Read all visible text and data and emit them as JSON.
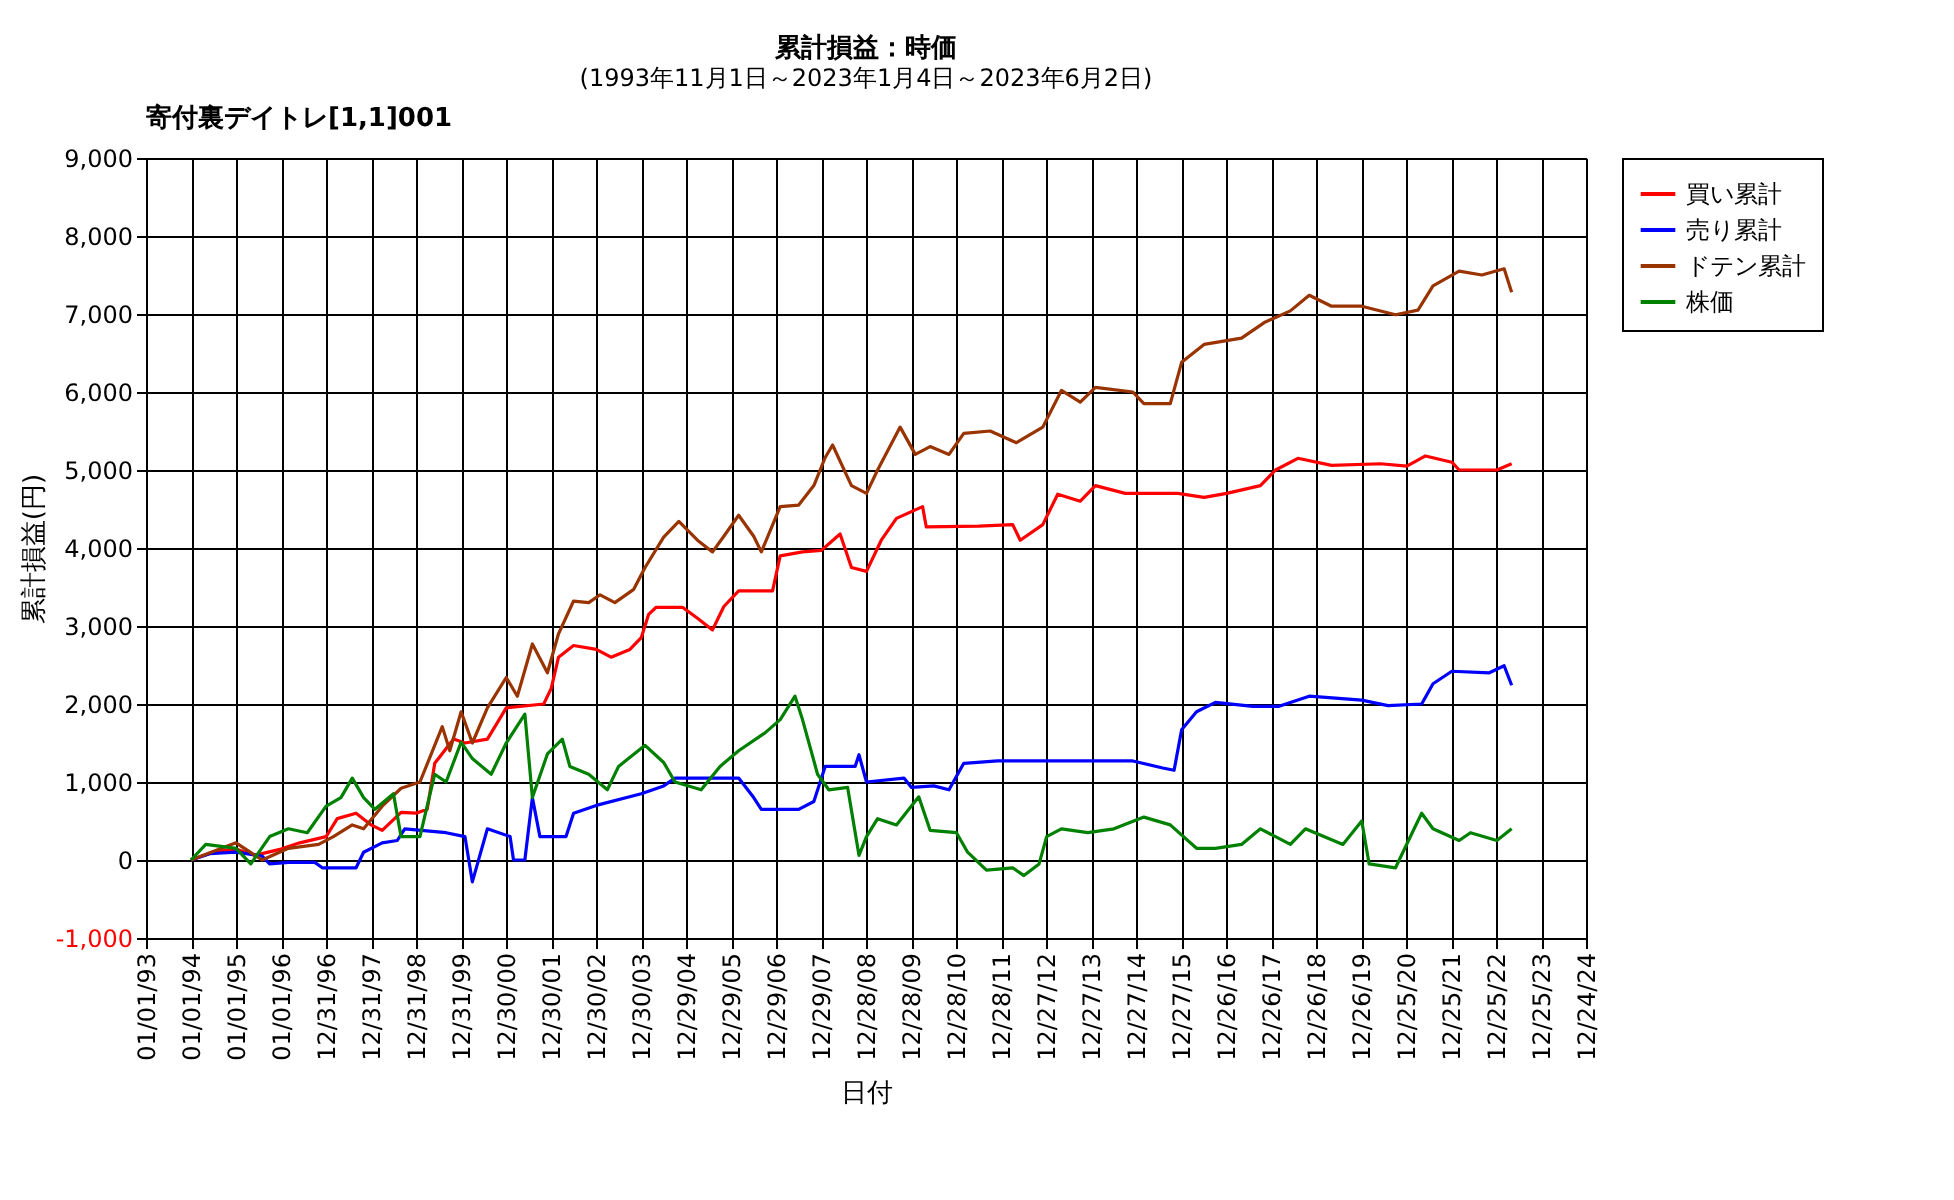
{
  "chart_data": {
    "type": "line",
    "title": "累計損益：時価",
    "subtitle": "(1993年11月1日～2023年1月4日～2023年6月2日)",
    "xlabel": "日付",
    "ylabel": "累計損益(円)",
    "annotations": [
      "寄付裏デイトレ[1,1]001"
    ],
    "xlim": [
      "1993-01-01",
      "2024-12-24"
    ],
    "xticks": [
      {
        "value": "1993-01-01",
        "label": "01/01/93"
      },
      {
        "value": "1994-01-01",
        "label": "01/01/94"
      },
      {
        "value": "1995-01-01",
        "label": "01/01/95"
      },
      {
        "value": "1996-01-01",
        "label": "01/01/96"
      },
      {
        "value": "1996-12-31",
        "label": "12/31/96"
      },
      {
        "value": "1997-12-31",
        "label": "12/31/97"
      },
      {
        "value": "1998-12-31",
        "label": "12/31/98"
      },
      {
        "value": "1999-12-31",
        "label": "12/31/99"
      },
      {
        "value": "2000-12-30",
        "label": "12/30/00"
      },
      {
        "value": "2001-12-30",
        "label": "12/30/01"
      },
      {
        "value": "2002-12-30",
        "label": "12/30/02"
      },
      {
        "value": "2003-12-30",
        "label": "12/30/03"
      },
      {
        "value": "2004-12-29",
        "label": "12/29/04"
      },
      {
        "value": "2005-12-29",
        "label": "12/29/05"
      },
      {
        "value": "2006-12-29",
        "label": "12/29/06"
      },
      {
        "value": "2007-12-29",
        "label": "12/29/07"
      },
      {
        "value": "2008-12-28",
        "label": "12/28/08"
      },
      {
        "value": "2009-12-28",
        "label": "12/28/09"
      },
      {
        "value": "2010-12-28",
        "label": "12/28/10"
      },
      {
        "value": "2011-12-28",
        "label": "12/28/11"
      },
      {
        "value": "2012-12-27",
        "label": "12/27/12"
      },
      {
        "value": "2013-12-27",
        "label": "12/27/13"
      },
      {
        "value": "2014-12-27",
        "label": "12/27/14"
      },
      {
        "value": "2015-12-27",
        "label": "12/27/15"
      },
      {
        "value": "2016-12-26",
        "label": "12/26/16"
      },
      {
        "value": "2017-12-26",
        "label": "12/26/17"
      },
      {
        "value": "2018-12-26",
        "label": "12/26/18"
      },
      {
        "value": "2019-12-26",
        "label": "12/26/19"
      },
      {
        "value": "2020-12-25",
        "label": "12/25/20"
      },
      {
        "value": "2021-12-25",
        "label": "12/25/21"
      },
      {
        "value": "2022-12-25",
        "label": "12/25/22"
      },
      {
        "value": "2023-12-25",
        "label": "12/25/23"
      },
      {
        "value": "2024-12-24",
        "label": "12/24/24"
      }
    ],
    "ylim": [
      -1000,
      9000
    ],
    "yticks": [
      {
        "value": -1000,
        "label": "-1,000"
      },
      0,
      {
        "value": 1000,
        "label": "1,000"
      },
      {
        "value": 2000,
        "label": "2,000"
      },
      {
        "value": 3000,
        "label": "3,000"
      },
      {
        "value": 4000,
        "label": "4,000"
      },
      {
        "value": 5000,
        "label": "5,000"
      },
      {
        "value": 6000,
        "label": "6,000"
      },
      {
        "value": 7000,
        "label": "7,000"
      },
      {
        "value": 8000,
        "label": "8,000"
      },
      {
        "value": 9000,
        "label": "9,000"
      }
    ],
    "grid": true,
    "legend": "right",
    "marker": "none",
    "line_style": "solid",
    "series": [
      {
        "name": "買い累計",
        "color": "#ff0000",
        "x": [
          "1994-01",
          "1994-07",
          "1995-01",
          "1995-06",
          "1996-01",
          "1996-06",
          "1997-01",
          "1997-04",
          "1997-09",
          "1998-01",
          "1998-04",
          "1998-09",
          "1999-01",
          "1999-04",
          "1999-06",
          "1999-11",
          "2000-02",
          "2000-08",
          "2000-11",
          "2001-01",
          "2001-11",
          "2002-01",
          "2002-03",
          "2002-07",
          "2003-01",
          "2003-05",
          "2003-10",
          "2004-01",
          "2004-03",
          "2004-05",
          "2004-12",
          "2005-04",
          "2005-08",
          "2005-11",
          "2006-03",
          "2006-12",
          "2007-02",
          "2007-08",
          "2008-01",
          "2008-06",
          "2008-09",
          "2009-01",
          "2009-05",
          "2009-09",
          "2010-04",
          "2010-05",
          "2011-07",
          "2012-04",
          "2012-06",
          "2012-12",
          "2013-04",
          "2013-10",
          "2014-02",
          "2014-10",
          "2015-12",
          "2016-07",
          "2017-01",
          "2017-10",
          "2018-02",
          "2018-08",
          "2019-05",
          "2020-06",
          "2021-01",
          "2021-06",
          "2022-01",
          "2022-03",
          "2023-01",
          "2023-05"
        ],
        "values": [
          0,
          100,
          140,
          60,
          140,
          220,
          300,
          530,
          600,
          450,
          380,
          610,
          600,
          650,
          1240,
          1550,
          1500,
          1550,
          1790,
          1950,
          2000,
          2200,
          2600,
          2750,
          2700,
          2600,
          2700,
          2850,
          3150,
          3240,
          3240,
          3100,
          2950,
          3250,
          3450,
          3450,
          3900,
          3950,
          3970,
          4180,
          3750,
          3700,
          4100,
          4380,
          4530,
          4270,
          4280,
          4300,
          4100,
          4300,
          4690,
          4600,
          4800,
          4700,
          4700,
          4650,
          4700,
          4800,
          5000,
          5150,
          5060,
          5080,
          5050,
          5180,
          5100,
          5000,
          5000,
          5080
        ]
      },
      {
        "name": "売り累計",
        "color": "#0000ff",
        "x": [
          "1994-01",
          "1994-06",
          "1995-01",
          "1995-08",
          "1995-10",
          "1996-03",
          "1996-10",
          "1996-12",
          "1997-09",
          "1997-11",
          "1998-04",
          "1998-08",
          "1998-10",
          "1999-09",
          "2000-02",
          "2000-04",
          "2000-08",
          "2001-02",
          "2001-03",
          "2001-06",
          "2001-08",
          "2001-10",
          "2002-05",
          "2002-07",
          "2003-01",
          "2004-01",
          "2004-07",
          "2004-10",
          "2006-03",
          "2006-07",
          "2006-09",
          "2007-07",
          "2007-11",
          "2008-02",
          "2008-10",
          "2008-11",
          "2009-01",
          "2009-11",
          "2010-01",
          "2010-07",
          "2010-11",
          "2011-03",
          "2011-12",
          "2014-12",
          "2015-08",
          "2015-11",
          "2016-01",
          "2016-05",
          "2016-10",
          "2017-08",
          "2018-03",
          "2018-11",
          "2020-01",
          "2020-08",
          "2021-05",
          "2021-08",
          "2022-01",
          "2022-11",
          "2023-03",
          "2023-05"
        ],
        "values": [
          0,
          80,
          100,
          50,
          -50,
          -30,
          -30,
          -100,
          -100,
          100,
          220,
          250,
          400,
          350,
          300,
          -280,
          400,
          300,
          0,
          0,
          800,
          300,
          300,
          600,
          700,
          850,
          950,
          1050,
          1050,
          800,
          650,
          650,
          750,
          1200,
          1200,
          1350,
          1000,
          1050,
          930,
          950,
          900,
          1240,
          1270,
          1270,
          1180,
          1150,
          1670,
          1900,
          2020,
          1970,
          1970,
          2100,
          2050,
          1980,
          2000,
          2260,
          2420,
          2400,
          2490,
          2240
        ]
      },
      {
        "name": "ドテン累計",
        "color": "#993300",
        "x": [
          "1994-01",
          "1995-01",
          "1995-08",
          "1996-03",
          "1996-11",
          "1997-03",
          "1997-08",
          "1997-11",
          "1998-04",
          "1998-09",
          "1999-02",
          "1999-08",
          "1999-10",
          "2000-01",
          "2000-04",
          "2000-08",
          "2001-01",
          "2001-04",
          "2001-08",
          "2001-12",
          "2002-03",
          "2002-07",
          "2002-11",
          "2003-02",
          "2003-06",
          "2003-11",
          "2004-02",
          "2004-07",
          "2004-11",
          "2005-04",
          "2005-08",
          "2005-11",
          "2006-03",
          "2006-07",
          "2006-09",
          "2007-02",
          "2007-07",
          "2007-11",
          "2008-02",
          "2008-04",
          "2008-09",
          "2009-01",
          "2009-04",
          "2009-10",
          "2010-02",
          "2010-06",
          "2010-11",
          "2011-03",
          "2011-10",
          "2012-05",
          "2012-12",
          "2013-05",
          "2013-10",
          "2014-02",
          "2014-12",
          "2015-03",
          "2015-10",
          "2016-01",
          "2016-07",
          "2017-05",
          "2017-11",
          "2018-06",
          "2018-11",
          "2019-05",
          "2020-01",
          "2020-10",
          "2021-04",
          "2021-08",
          "2022-03",
          "2022-09",
          "2023-03",
          "2023-05"
        ],
        "values": [
          0,
          220,
          0,
          150,
          200,
          300,
          450,
          400,
          690,
          920,
          1000,
          1710,
          1400,
          1900,
          1500,
          1950,
          2340,
          2100,
          2770,
          2400,
          2900,
          3320,
          3300,
          3400,
          3300,
          3470,
          3750,
          4140,
          4340,
          4100,
          3950,
          4150,
          4420,
          4150,
          3950,
          4530,
          4550,
          4800,
          5160,
          5320,
          4800,
          4700,
          5000,
          5550,
          5200,
          5300,
          5200,
          5470,
          5500,
          5350,
          5550,
          6020,
          5870,
          6060,
          6000,
          5850,
          5850,
          6380,
          6610,
          6690,
          6890,
          7040,
          7240,
          7100,
          7100,
          6990,
          7050,
          7360,
          7550,
          7500,
          7580,
          7280
        ]
      },
      {
        "name": "株価",
        "color": "#008000",
        "x": [
          "1994-01",
          "1994-05",
          "1995-01",
          "1995-05",
          "1995-10",
          "1996-03",
          "1996-08",
          "1997-01",
          "1997-05",
          "1997-08",
          "1997-11",
          "1998-02",
          "1998-07",
          "1998-09",
          "1999-02",
          "1999-06",
          "1999-09",
          "2000-01",
          "2000-04",
          "2000-09",
          "2001-01",
          "2001-06",
          "2001-08",
          "2001-12",
          "2002-04",
          "2002-06",
          "2002-11",
          "2003-04",
          "2003-07",
          "2004-02",
          "2004-07",
          "2004-10",
          "2005-05",
          "2005-10",
          "2006-03",
          "2006-10",
          "2007-02",
          "2007-06",
          "2007-08",
          "2007-12",
          "2008-03",
          "2008-08",
          "2008-11",
          "2009-01",
          "2009-04",
          "2009-09",
          "2010-03",
          "2010-06",
          "2011-01",
          "2011-04",
          "2011-09",
          "2012-04",
          "2012-07",
          "2012-11",
          "2013-01",
          "2013-05",
          "2013-12",
          "2014-07",
          "2015-03",
          "2015-10",
          "2016-05",
          "2016-10",
          "2017-05",
          "2017-10",
          "2018-06",
          "2018-10",
          "2019-08",
          "2020-01",
          "2020-03",
          "2020-10",
          "2021-03",
          "2021-05",
          "2021-08",
          "2022-03",
          "2022-06",
          "2023-01",
          "2023-05"
        ],
        "values": [
          0,
          200,
          150,
          -50,
          300,
          400,
          350,
          690,
          800,
          1050,
          800,
          650,
          850,
          300,
          300,
          1100,
          1000,
          1510,
          1300,
          1100,
          1500,
          1870,
          800,
          1360,
          1550,
          1200,
          1100,
          900,
          1200,
          1470,
          1250,
          1000,
          900,
          1200,
          1400,
          1630,
          1800,
          2100,
          1800,
          1100,
          900,
          930,
          60,
          300,
          530,
          450,
          810,
          380,
          350,
          100,
          -130,
          -100,
          -200,
          -50,
          300,
          400,
          350,
          400,
          550,
          450,
          150,
          150,
          200,
          400,
          200,
          400,
          200,
          500,
          -50,
          -100,
          400,
          600,
          400,
          250,
          350,
          250,
          400
        ]
      }
    ]
  }
}
